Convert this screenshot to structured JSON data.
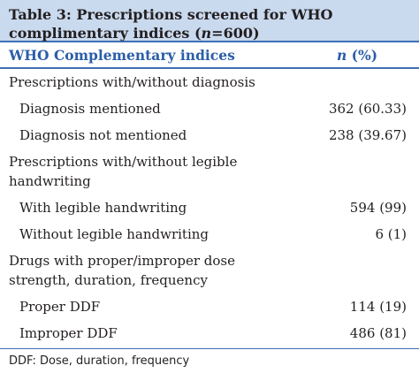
{
  "table": {
    "title_prefix": "Table 3: Prescriptions screened for WHO complimentary indices (",
    "title_n": "n",
    "title_suffix": "=600)",
    "header": {
      "label": "WHO Complementary indices",
      "value_n": "n",
      "value_suffix": " (%)"
    },
    "rows": [
      {
        "type": "section",
        "label": "Prescriptions with/without diagnosis",
        "value": ""
      },
      {
        "type": "item",
        "label": "Diagnosis mentioned",
        "value": "362 (60.33)"
      },
      {
        "type": "item",
        "label": "Diagnosis not mentioned",
        "value": "238 (39.67)"
      },
      {
        "type": "section",
        "label": "Prescriptions with/without legible handwriting",
        "value": ""
      },
      {
        "type": "item",
        "label": "With legible handwriting",
        "value": "594 (99)"
      },
      {
        "type": "item",
        "label": "Without legible handwriting",
        "value": "6 (1)"
      },
      {
        "type": "section",
        "label": "Drugs with proper/improper dose strength, duration, frequency",
        "value": ""
      },
      {
        "type": "item",
        "label": "Proper DDF",
        "value": "114 (19)"
      },
      {
        "type": "item",
        "label": "Improper DDF",
        "value": "486 (81)"
      }
    ],
    "footnote": "DDF: Dose, duration, frequency"
  },
  "colors": {
    "title_bg": "#c9d9ee",
    "header_text": "#2b5ea8",
    "rule": "#3f6fb4"
  }
}
